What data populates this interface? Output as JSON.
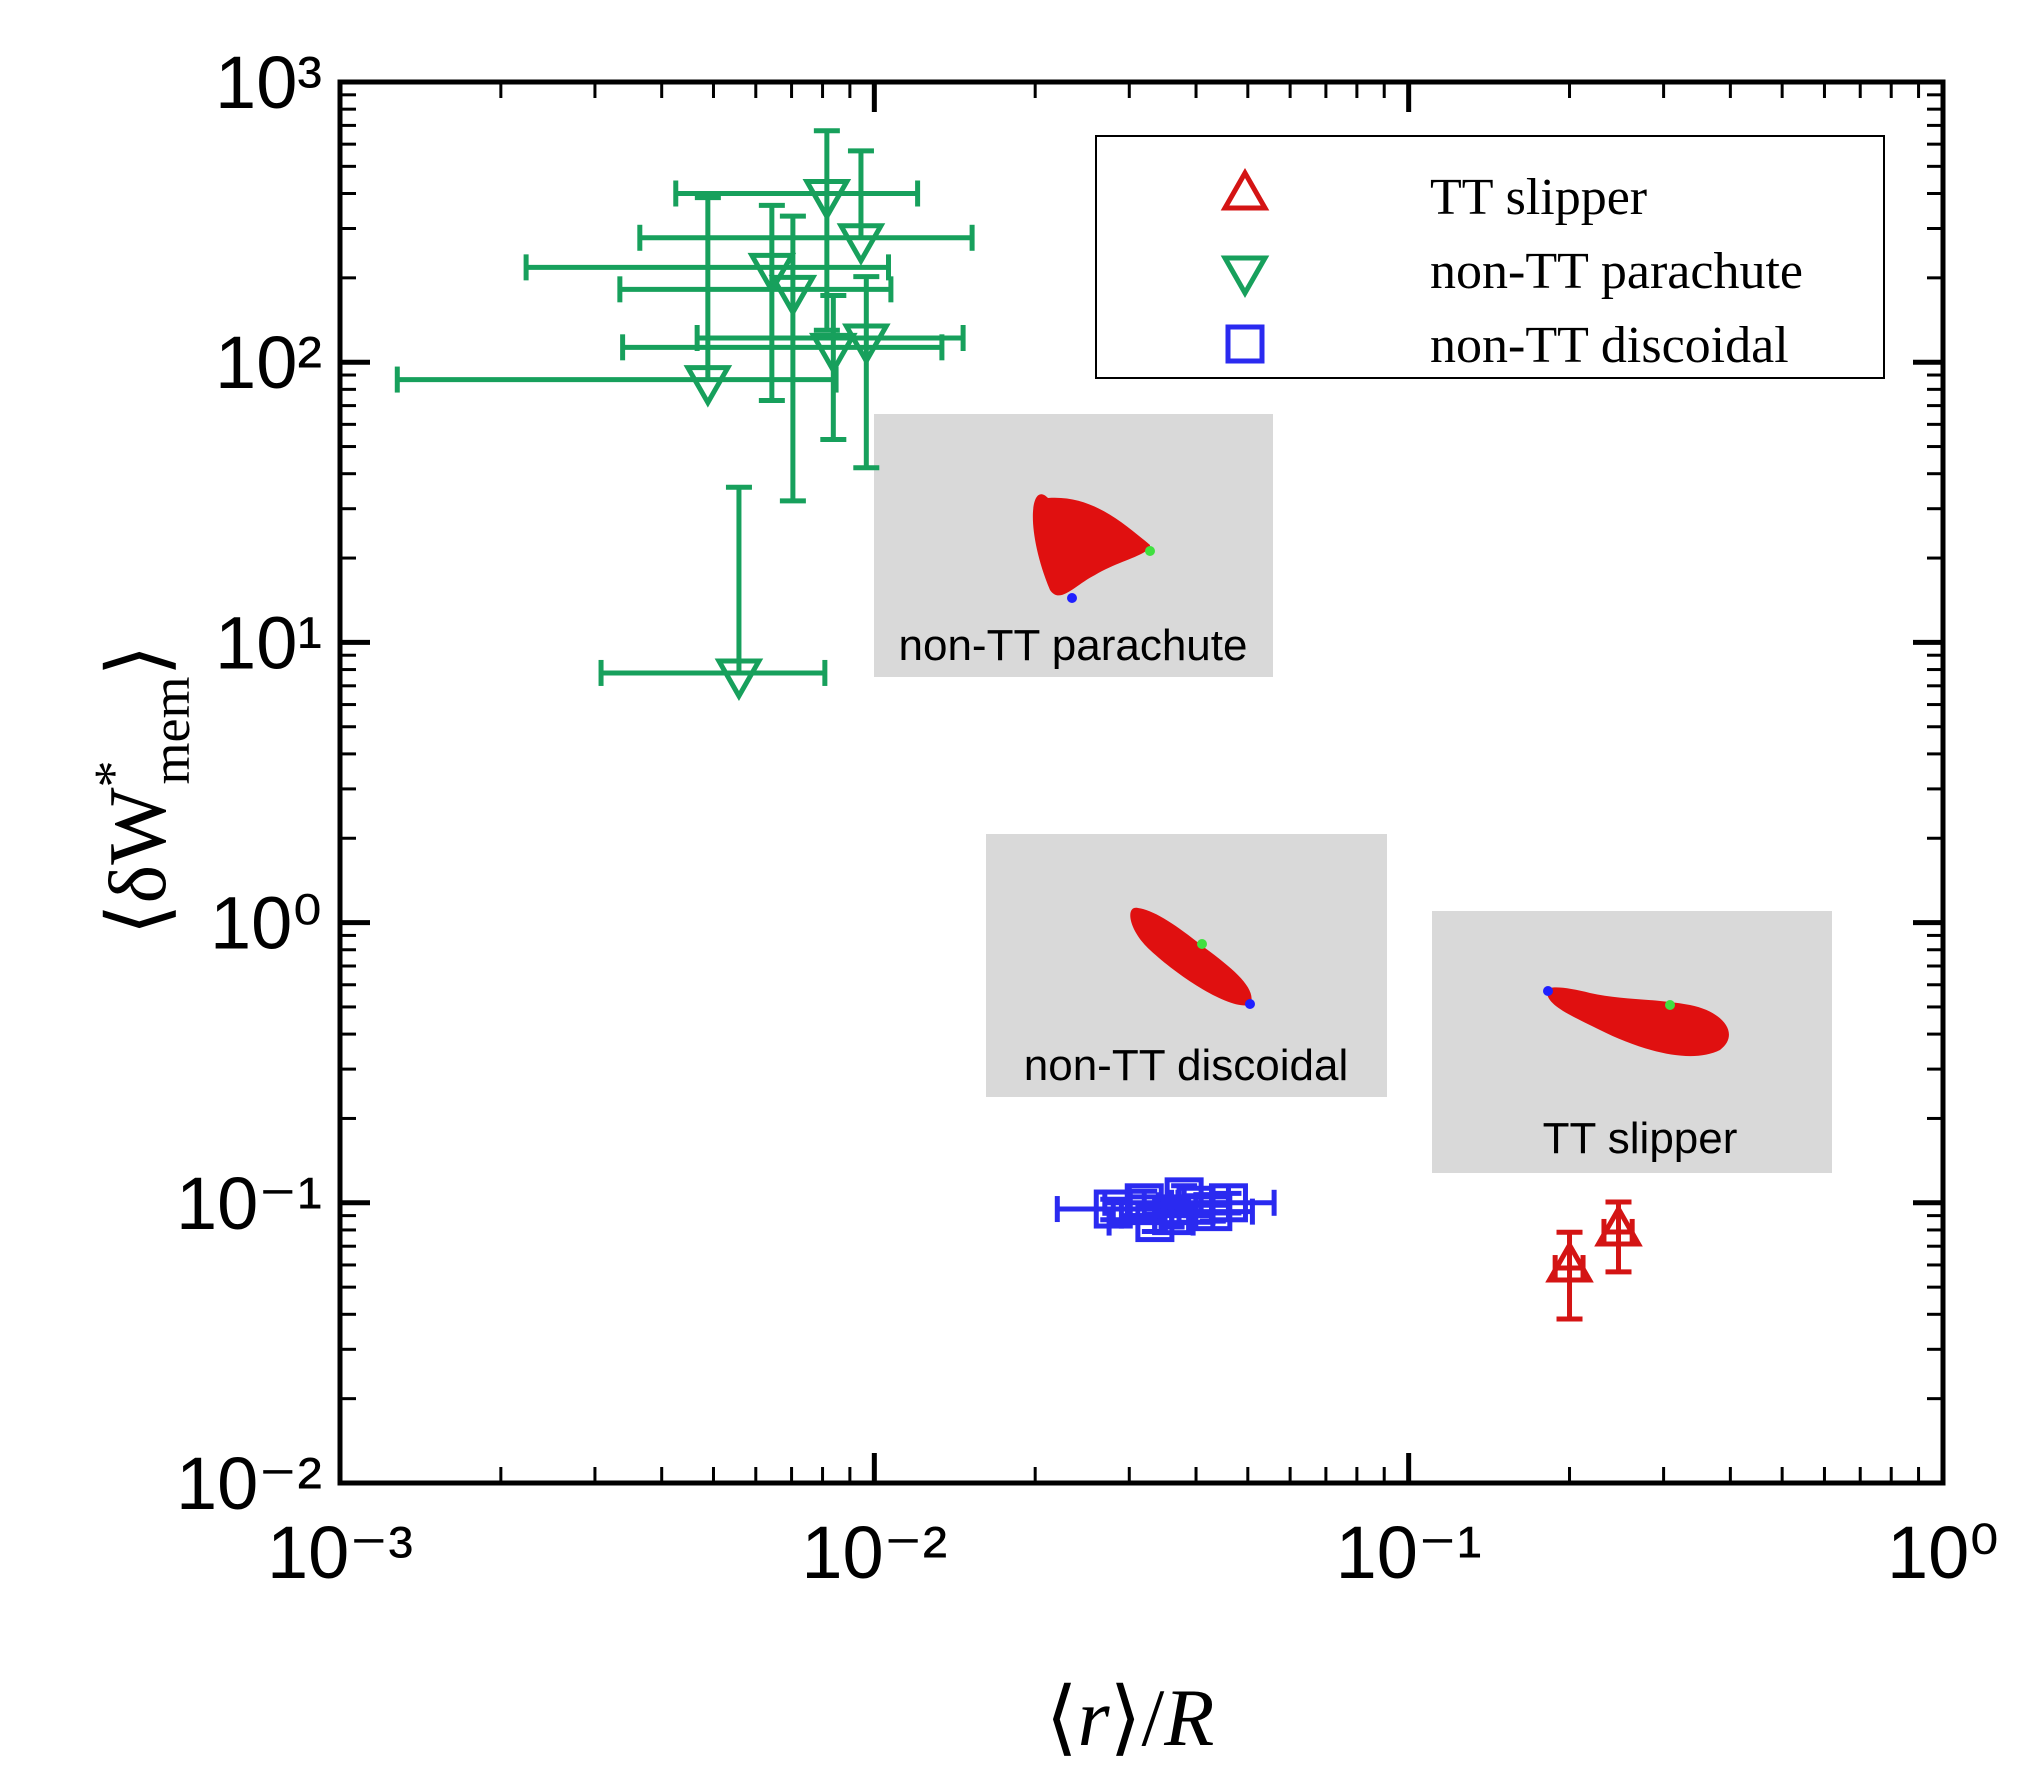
{
  "chart_data": {
    "type": "scatter",
    "xlabel": [
      "⟨",
      "r",
      "⟩/",
      "R"
    ],
    "ylabel": {
      "main": "⟨δW",
      "sup": "*",
      "sub": "mem",
      "end": "⟩"
    },
    "xscale": "log",
    "yscale": "log",
    "xlim": [
      0.001,
      1
    ],
    "ylim": [
      0.01,
      1000
    ],
    "xticks": [
      {
        "value": 0.001,
        "label": "10⁻³"
      },
      {
        "value": 0.01,
        "label": "10⁻²"
      },
      {
        "value": 0.1,
        "label": "10⁻¹"
      },
      {
        "value": 1,
        "label": "10⁰"
      }
    ],
    "yticks": [
      {
        "value": 0.01,
        "label": "10⁻²"
      },
      {
        "value": 0.1,
        "label": "10⁻¹"
      },
      {
        "value": 1,
        "label": "10⁰"
      },
      {
        "value": 10,
        "label": "10¹"
      },
      {
        "value": 100,
        "label": "10²"
      },
      {
        "value": 1000,
        "label": "10³"
      }
    ],
    "legend": "upper right",
    "series": [
      {
        "name": "TT slipper",
        "color": "#d41414",
        "marker": "triangle-up",
        "x": [
          0.2,
          0.247
        ],
        "values": [
          0.0585,
          0.0787
        ],
        "xerr": [
          0.012,
          0.015
        ],
        "yerr": [
          0.02,
          0.022
        ]
      },
      {
        "name": "non-TT parachute",
        "color": "#17a05c",
        "marker": "triangle-down",
        "x": [
          0.00815,
          0.00944,
          0.00643,
          0.00704,
          0.00966,
          0.00838,
          0.00488,
          0.00558
        ],
        "values": [
          400,
          278,
          218,
          182,
          122,
          113,
          86.7,
          7.78
        ],
        "xerr": [
          0.0039,
          0.0058,
          0.0042,
          0.0037,
          0.005,
          0.005,
          0.0036,
          0.0025
        ],
        "yerr": [
          270,
          290,
          145,
          150,
          80,
          60,
          300,
          28
        ]
      },
      {
        "name": "non-TT discoidal",
        "color": "#2a2af0",
        "marker": "square",
        "x": [
          0.028,
          0.032,
          0.0335,
          0.036,
          0.038,
          0.04,
          0.043,
          0.046
        ],
        "values": [
          0.095,
          0.1,
          0.085,
          0.09,
          0.105,
          0.098,
          0.093,
          0.1
        ],
        "xerr": [
          0.006,
          0.005,
          0.006,
          0.007,
          0.008,
          0.006,
          0.008,
          0.01
        ],
        "yerr": [
          0.008,
          0.01,
          0.006,
          0.008,
          0.01,
          0.008,
          0.007,
          0.008
        ]
      }
    ],
    "annotations": [
      "non-TT parachute",
      "non-TT discoidal",
      "TT slipper"
    ]
  }
}
